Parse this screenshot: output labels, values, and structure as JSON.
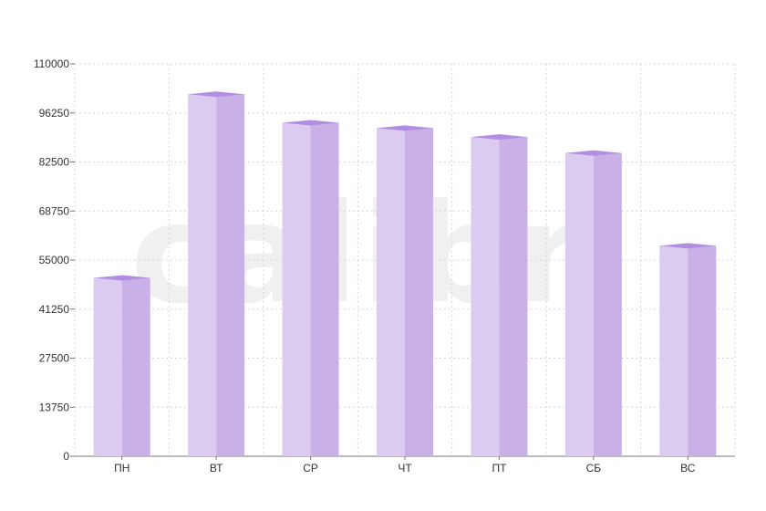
{
  "watermark_text": "calibri",
  "chart_data": {
    "type": "bar",
    "title": "",
    "xlabel": "",
    "ylabel": "",
    "categories": [
      "ПН",
      "ВТ",
      "СР",
      "ЧТ",
      "ПТ",
      "СБ",
      "ВС"
    ],
    "values": [
      50000,
      101500,
      93500,
      92000,
      89500,
      85000,
      59000
    ],
    "ylim": [
      0,
      110000
    ],
    "yticks": [
      "0",
      "13750",
      "27500",
      "41250",
      "55000",
      "68750",
      "82500",
      "96250",
      "110000"
    ],
    "grid": true,
    "legend": "none",
    "colors": {
      "bar_front": "#dccbf0",
      "bar_side": "#c9b1e8",
      "bar_top": "#b28ee0",
      "grid": "#d6d6d6",
      "axis": "#777777"
    }
  }
}
